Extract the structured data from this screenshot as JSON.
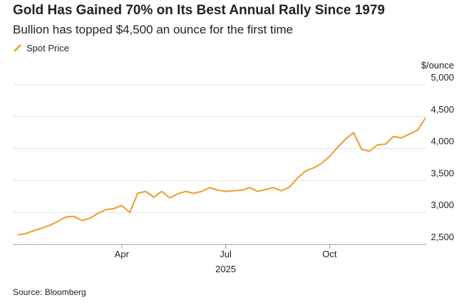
{
  "chart_data": {
    "type": "line",
    "title": "Gold Has Gained 70% on Its Best Annual Rally Since 1979",
    "subtitle": "Bullion has topped $4,500 an ounce for the first time",
    "ylabel": "$/ounce",
    "xlabel": "2025",
    "source": "Source: Bloomberg",
    "categories": [
      null,
      null,
      null,
      null,
      null,
      null,
      null,
      null,
      null,
      null,
      null,
      null,
      null,
      "Apr",
      null,
      null,
      null,
      null,
      null,
      null,
      null,
      null,
      null,
      null,
      null,
      null,
      "Jul",
      null,
      null,
      null,
      null,
      null,
      null,
      null,
      null,
      null,
      null,
      null,
      null,
      "Oct",
      null,
      null,
      null,
      null,
      null,
      null,
      null,
      null,
      null,
      null,
      null,
      null
    ],
    "series": [
      {
        "name": "Spot Price",
        "color": "#eda43c",
        "values": [
          2650,
          2670,
          2715,
          2755,
          2800,
          2860,
          2930,
          2940,
          2875,
          2910,
          2985,
          3045,
          3060,
          3110,
          3000,
          3300,
          3330,
          3240,
          3330,
          3230,
          3290,
          3330,
          3300,
          3330,
          3390,
          3350,
          3330,
          3340,
          3350,
          3390,
          3330,
          3360,
          3390,
          3340,
          3400,
          3540,
          3650,
          3700,
          3770,
          3880,
          4020,
          4150,
          4250,
          3990,
          3960,
          4060,
          4070,
          4190,
          4170,
          4230,
          4290,
          4480
        ]
      }
    ],
    "ylim": [
      2500,
      5000
    ],
    "yticks": [
      {
        "value": 2500,
        "label": "2,500"
      },
      {
        "value": 3000,
        "label": "3,000"
      },
      {
        "value": 3500,
        "label": "3,500"
      },
      {
        "value": 4000,
        "label": "4,000"
      },
      {
        "value": 4500,
        "label": "4,500"
      },
      {
        "value": 5000,
        "label": "5,000"
      }
    ],
    "grid": true
  }
}
